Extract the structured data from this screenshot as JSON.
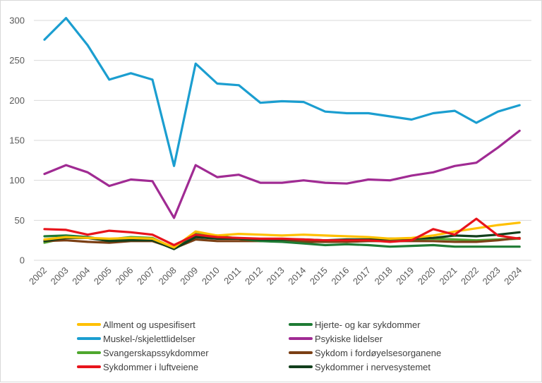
{
  "chart_data": {
    "type": "line",
    "title": "",
    "xlabel": "",
    "ylabel": "",
    "ylim": [
      0,
      300
    ],
    "yticks": [
      0,
      50,
      100,
      150,
      200,
      250,
      300
    ],
    "grid": "horizontal",
    "legend_position": "bottom",
    "x": [
      "2002",
      "2003",
      "2004",
      "2005",
      "2006",
      "2007",
      "2008",
      "2009",
      "2010",
      "2011",
      "2012",
      "2013",
      "2014",
      "2015",
      "2016",
      "2017",
      "2018",
      "2019",
      "2020",
      "2021",
      "2022",
      "2023",
      "2024"
    ],
    "series": [
      {
        "name": "Allment og uspesifisert",
        "color": "#FFC000",
        "values": [
          26,
          29,
          28,
          27,
          28,
          27,
          16,
          36,
          31,
          33,
          32,
          31,
          32,
          31,
          30,
          29,
          27,
          28,
          31,
          36,
          40,
          44,
          47
        ]
      },
      {
        "name": "Hjerte- og kar sykdommer",
        "color": "#1E7B34",
        "values": [
          30,
          31,
          29,
          25,
          27,
          27,
          15,
          31,
          29,
          27,
          24,
          23,
          21,
          19,
          20,
          19,
          17,
          18,
          19,
          17,
          17,
          17,
          17
        ]
      },
      {
        "name": "Muskel-/skjelettlidelser",
        "color": "#1B9ED0",
        "values": [
          276,
          303,
          269,
          226,
          234,
          226,
          118,
          246,
          221,
          219,
          197,
          199,
          198,
          186,
          184,
          184,
          180,
          176,
          184,
          187,
          172,
          186,
          194
        ]
      },
      {
        "name": "Psykiske lidelser",
        "color": "#A02B93",
        "values": [
          108,
          119,
          110,
          93,
          101,
          99,
          53,
          119,
          104,
          107,
          97,
          97,
          100,
          97,
          96,
          101,
          100,
          106,
          110,
          118,
          122,
          141,
          162
        ]
      },
      {
        "name": "Svangerskapssykdommer",
        "color": "#4EA72E",
        "values": [
          22,
          28,
          28,
          26,
          29,
          28,
          15,
          33,
          31,
          27,
          25,
          25,
          25,
          24,
          25,
          25,
          26,
          26,
          27,
          26,
          25,
          26,
          27
        ]
      },
      {
        "name": "Sykdom i fordøyelsesorganene",
        "color": "#7B3F14",
        "values": [
          24,
          25,
          23,
          22,
          24,
          24,
          15,
          26,
          24,
          24,
          24,
          24,
          23,
          23,
          23,
          24,
          24,
          24,
          24,
          23,
          23,
          25,
          28
        ]
      },
      {
        "name": "Sykdommer i luftveiene",
        "color": "#E8141B",
        "values": [
          39,
          38,
          32,
          37,
          35,
          32,
          19,
          32,
          29,
          28,
          27,
          27,
          26,
          25,
          25,
          25,
          23,
          25,
          39,
          32,
          52,
          31,
          27
        ]
      },
      {
        "name": "Sykdommer i nervesystemet",
        "color": "#123F1C",
        "values": [
          24,
          28,
          28,
          24,
          25,
          25,
          14,
          29,
          27,
          27,
          26,
          26,
          26,
          25,
          26,
          26,
          27,
          27,
          28,
          31,
          30,
          32,
          35
        ]
      }
    ],
    "legend": [
      "Allment og uspesifisert",
      "Muskel-/skjelettlidelser",
      "Svangerskapssykdommer",
      "Sykdommer i luftveiene",
      "Hjerte- og kar sykdommer",
      "Psykiske lidelser",
      "Sykdom i fordøyelsesorganene",
      "Sykdommer i nervesystemet"
    ]
  }
}
